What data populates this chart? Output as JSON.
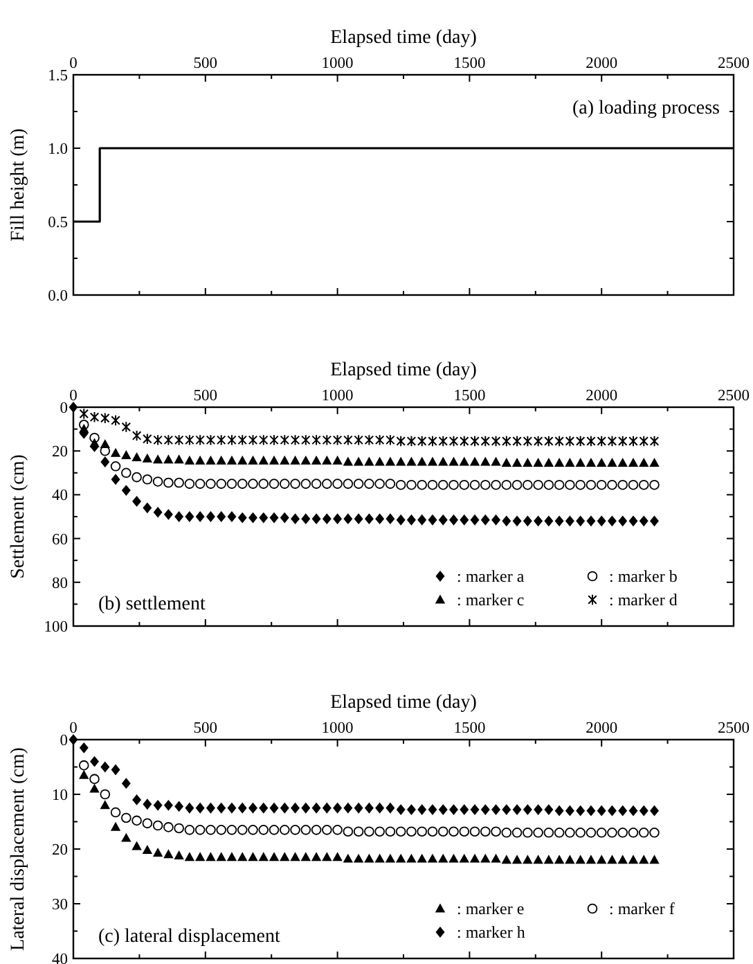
{
  "chart_data": [
    {
      "type": "step",
      "xlabel": "Elapsed time (day)",
      "ylabel": "Fill height (m)",
      "annotations": [
        "(a) loading process"
      ],
      "xlim": [
        0,
        2500
      ],
      "xticks": [
        0,
        {
          "value": 250,
          "label": null
        },
        500,
        {
          "value": 750,
          "label": null
        },
        1000,
        {
          "value": 1250,
          "label": null
        },
        1500,
        {
          "value": 1750,
          "label": null
        },
        2000,
        {
          "value": 2250,
          "label": null
        },
        2500
      ],
      "ylim": [
        0,
        1.5
      ],
      "yticks": [
        {
          "value": 0,
          "label": "0.0"
        },
        {
          "value": 0.25,
          "label": null
        },
        {
          "value": 0.5,
          "label": "0.5"
        },
        {
          "value": 0.75,
          "label": null
        },
        {
          "value": 1,
          "label": "1.0"
        },
        {
          "value": 1.25,
          "label": null
        },
        {
          "value": 1.5,
          "label": "1.5"
        }
      ],
      "series": [
        {
          "color": "#000000",
          "x": [
            0,
            100,
            2500
          ],
          "values": [
            0.5,
            1.0,
            1.0
          ]
        }
      ]
    },
    {
      "type": "scatter",
      "xlabel": "Elapsed time (day)",
      "ylabel": "Settlement (cm)",
      "annotations": [
        "(b) settlement"
      ],
      "legend": "bottom right",
      "xlim": [
        0,
        2500
      ],
      "xticks": [
        0,
        {
          "value": 250,
          "label": null
        },
        500,
        {
          "value": 750,
          "label": null
        },
        1000,
        {
          "value": 1250,
          "label": null
        },
        1500,
        {
          "value": 1750,
          "label": null
        },
        2000,
        {
          "value": 2250,
          "label": null
        },
        2500
      ],
      "ylim": [
        100,
        0
      ],
      "yticks": [
        0,
        {
          "value": 10,
          "label": null
        },
        20,
        {
          "value": 30,
          "label": null
        },
        40,
        {
          "value": 50,
          "label": null
        },
        60,
        {
          "value": 70,
          "label": null
        },
        80,
        {
          "value": 90,
          "label": null
        },
        100
      ],
      "x": [
        0,
        40,
        80,
        120,
        160,
        200,
        240,
        280,
        320,
        360,
        400,
        440,
        480,
        520,
        560,
        600,
        640,
        680,
        720,
        760,
        800,
        840,
        880,
        920,
        960,
        1000,
        1040,
        1080,
        1120,
        1160,
        1200,
        1240,
        1280,
        1320,
        1360,
        1400,
        1440,
        1480,
        1520,
        1560,
        1600,
        1640,
        1680,
        1720,
        1760,
        1800,
        1840,
        1880,
        1920,
        1960,
        2000,
        2040,
        2080,
        2120,
        2160,
        2200
      ],
      "series": [
        {
          "name": ": marker a",
          "color": "#000000",
          "marker": "diamond",
          "values": [
            0,
            12,
            18,
            25,
            33,
            38,
            43,
            46,
            48,
            49,
            50,
            50,
            50,
            50,
            50,
            50,
            50.5,
            50.5,
            50.5,
            50.5,
            50.5,
            51,
            51,
            51,
            51,
            51,
            51,
            51,
            51,
            51,
            51,
            51.5,
            51.5,
            51.5,
            51.5,
            51.5,
            51.5,
            51.5,
            51.5,
            51.5,
            51.5,
            52,
            52,
            52,
            52,
            52,
            52,
            52,
            52,
            52,
            52,
            52,
            52,
            52,
            52,
            52
          ]
        },
        {
          "name": ": marker b",
          "color": "#000000",
          "marker": "circle",
          "values": [
            null,
            8,
            14,
            20,
            27,
            30,
            32,
            33,
            34,
            34.5,
            34.5,
            35,
            35,
            35,
            35,
            35,
            35,
            35,
            35,
            35,
            35,
            35,
            35,
            35,
            35,
            35,
            35,
            35,
            35,
            35,
            35,
            35.5,
            35.5,
            35.5,
            35.5,
            35.5,
            35.5,
            35.5,
            35.5,
            35.5,
            35.5,
            35.5,
            35.5,
            35.5,
            35.5,
            35.5,
            35.5,
            35.5,
            35.5,
            35.5,
            35.5,
            35.5,
            35.5,
            35.5,
            35.5,
            35.5
          ]
        },
        {
          "name": ": marker c",
          "color": "#000000",
          "marker": "triangle",
          "values": [
            null,
            10,
            16.5,
            17,
            21,
            22,
            23,
            23.5,
            24,
            24,
            24,
            24.5,
            24.5,
            24.5,
            24.5,
            24.5,
            24.5,
            24.5,
            24.5,
            24.5,
            24.5,
            24.5,
            24.5,
            24.5,
            24.5,
            24.5,
            25,
            25,
            25,
            25,
            25,
            25,
            25,
            25,
            25,
            25,
            25,
            25,
            25,
            25,
            25,
            25.5,
            25.5,
            25.5,
            25.5,
            25.5,
            25.5,
            25.5,
            25.5,
            25.5,
            25.5,
            25.5,
            25.5,
            25.5,
            25.5,
            25.5
          ]
        },
        {
          "name": ": marker d",
          "color": "#000000",
          "marker": "cross",
          "values": [
            null,
            3,
            4.5,
            5,
            6,
            9,
            13,
            14.5,
            15,
            15,
            15,
            15,
            15,
            15,
            15,
            15,
            15,
            15,
            15,
            15,
            15,
            15,
            15,
            15,
            15,
            15,
            15,
            15,
            15,
            15,
            15,
            15.5,
            15.5,
            15.5,
            15.5,
            15.5,
            15.5,
            15.5,
            15.5,
            15.5,
            15.5,
            15.5,
            15.5,
            15.5,
            15.5,
            15.5,
            15.5,
            15.5,
            15.5,
            15.5,
            15.5,
            15.5,
            15.5,
            15.5,
            15.5,
            15.5
          ]
        }
      ]
    },
    {
      "type": "scatter",
      "xlabel": "Elapsed time (day)",
      "ylabel": "Lateral displacement (cm)",
      "annotations": [
        "(c) lateral displacement"
      ],
      "legend": "bottom right",
      "xlim": [
        0,
        2500
      ],
      "xticks": [
        0,
        {
          "value": 250,
          "label": null
        },
        500,
        {
          "value": 750,
          "label": null
        },
        1000,
        {
          "value": 1250,
          "label": null
        },
        1500,
        {
          "value": 1750,
          "label": null
        },
        2000,
        {
          "value": 2250,
          "label": null
        },
        2500
      ],
      "ylim": [
        40,
        0
      ],
      "yticks": [
        0,
        {
          "value": 5,
          "label": null
        },
        10,
        {
          "value": 15,
          "label": null
        },
        20,
        {
          "value": 25,
          "label": null
        },
        30,
        {
          "value": 35,
          "label": null
        },
        40
      ],
      "x": [
        0,
        40,
        80,
        120,
        160,
        200,
        240,
        280,
        320,
        360,
        400,
        440,
        480,
        520,
        560,
        600,
        640,
        680,
        720,
        760,
        800,
        840,
        880,
        920,
        960,
        1000,
        1040,
        1080,
        1120,
        1160,
        1200,
        1240,
        1280,
        1320,
        1360,
        1400,
        1440,
        1480,
        1520,
        1560,
        1600,
        1640,
        1680,
        1720,
        1760,
        1800,
        1840,
        1880,
        1920,
        1960,
        2000,
        2040,
        2080,
        2120,
        2160,
        2200
      ],
      "series": [
        {
          "name": ": marker e",
          "color": "#000000",
          "marker": "triangle",
          "values": [
            null,
            6.5,
            9,
            12,
            16,
            18,
            19.5,
            20.2,
            20.7,
            21,
            21.2,
            21.5,
            21.5,
            21.5,
            21.5,
            21.5,
            21.5,
            21.5,
            21.5,
            21.5,
            21.5,
            21.5,
            21.5,
            21.5,
            21.5,
            21.5,
            21.8,
            21.8,
            21.8,
            21.8,
            21.8,
            21.8,
            21.8,
            21.8,
            21.8,
            21.8,
            21.8,
            21.8,
            21.8,
            21.8,
            21.8,
            22,
            22,
            22,
            22,
            22,
            22,
            22,
            22,
            22,
            22,
            22,
            22,
            22,
            22,
            22
          ]
        },
        {
          "name": ": marker f",
          "color": "#000000",
          "marker": "circle",
          "values": [
            null,
            4.7,
            7.2,
            10,
            13.3,
            14.3,
            14.8,
            15.3,
            15.7,
            16,
            16.2,
            16.5,
            16.5,
            16.5,
            16.5,
            16.5,
            16.5,
            16.5,
            16.5,
            16.5,
            16.5,
            16.5,
            16.5,
            16.5,
            16.5,
            16.5,
            16.8,
            16.8,
            16.8,
            16.8,
            16.8,
            16.8,
            16.8,
            16.8,
            16.8,
            16.8,
            16.8,
            16.8,
            16.8,
            16.8,
            16.8,
            17,
            17,
            17,
            17,
            17,
            17,
            17,
            17,
            17,
            17,
            17,
            17,
            17,
            17,
            17
          ]
        },
        {
          "name": ": marker h",
          "color": "#000000",
          "marker": "diamond",
          "values": [
            0,
            1.5,
            4,
            5,
            5.5,
            8,
            11,
            11.8,
            12,
            12,
            12.2,
            12.5,
            12.5,
            12.5,
            12.5,
            12.5,
            12.5,
            12.5,
            12.5,
            12.5,
            12.5,
            12.5,
            12.5,
            12.5,
            12.5,
            12.5,
            12.5,
            12.5,
            12.5,
            12.5,
            12.5,
            12.8,
            12.8,
            12.8,
            12.8,
            12.8,
            12.8,
            12.8,
            12.8,
            12.8,
            12.8,
            12.8,
            12.8,
            12.8,
            12.8,
            12.8,
            13,
            13,
            13,
            13,
            13,
            13,
            13,
            13,
            13,
            13
          ]
        }
      ]
    }
  ]
}
